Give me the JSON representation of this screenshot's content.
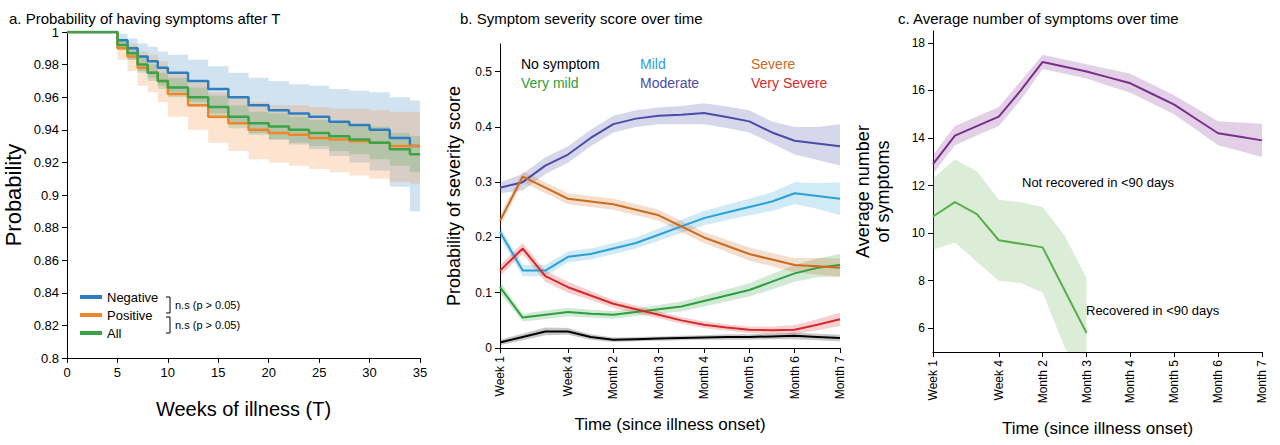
{
  "chart_data": [
    {
      "type": "line",
      "title": "a. Probability of having symptoms after T",
      "x_label": "Weeks of illness (T)",
      "y_label": "Probability",
      "x": [
        0,
        4,
        5,
        6,
        7,
        8,
        9,
        10,
        12,
        14,
        16,
        18,
        20,
        22,
        24,
        26,
        28,
        30,
        32,
        34,
        35
      ],
      "xlim": [
        0,
        35
      ],
      "xticks": [
        0,
        5,
        10,
        15,
        20,
        25,
        30,
        35
      ],
      "ylim": [
        0.8,
        1
      ],
      "yticks": [
        0.8,
        0.82,
        0.84,
        0.86,
        0.88,
        0.9,
        0.92,
        0.94,
        0.96,
        0.98,
        1
      ],
      "line_style": "step",
      "legend": "lower left",
      "grid": false,
      "annotations": [
        "n.s (p > 0.05)",
        "n.s (p > 0.05)"
      ],
      "series": [
        {
          "name": "Negative",
          "color": "#2e7ebf",
          "values": [
            1,
            1,
            0.995,
            0.99,
            0.985,
            0.982,
            0.978,
            0.975,
            0.97,
            0.965,
            0.96,
            0.955,
            0.952,
            0.95,
            0.948,
            0.945,
            0.943,
            0.94,
            0.935,
            0.93,
            0.93
          ],
          "lower": [
            1,
            1,
            0.99,
            0.983,
            0.976,
            0.972,
            0.967,
            0.963,
            0.957,
            0.95,
            0.944,
            0.938,
            0.934,
            0.931,
            0.928,
            0.924,
            0.92,
            0.915,
            0.905,
            0.89,
            0.89
          ],
          "upper": [
            1,
            1,
            0.999,
            0.996,
            0.993,
            0.991,
            0.988,
            0.986,
            0.983,
            0.979,
            0.975,
            0.972,
            0.97,
            0.968,
            0.967,
            0.965,
            0.964,
            0.963,
            0.96,
            0.958,
            0.958
          ]
        },
        {
          "name": "Positive",
          "color": "#f0862c",
          "values": [
            1,
            1,
            0.99,
            0.985,
            0.978,
            0.975,
            0.97,
            0.962,
            0.955,
            0.948,
            0.944,
            0.94,
            0.938,
            0.937,
            0.935,
            0.934,
            0.933,
            0.932,
            0.93,
            0.93,
            0.93
          ],
          "lower": [
            1,
            1,
            0.983,
            0.976,
            0.967,
            0.963,
            0.957,
            0.948,
            0.94,
            0.932,
            0.927,
            0.922,
            0.92,
            0.918,
            0.916,
            0.914,
            0.912,
            0.91,
            0.908,
            0.907,
            0.907
          ],
          "upper": [
            1,
            1,
            0.996,
            0.993,
            0.988,
            0.986,
            0.982,
            0.975,
            0.969,
            0.963,
            0.96,
            0.957,
            0.955,
            0.955,
            0.954,
            0.953,
            0.953,
            0.952,
            0.951,
            0.951,
            0.951
          ]
        },
        {
          "name": "All",
          "color": "#3aa346",
          "values": [
            1,
            1,
            0.992,
            0.987,
            0.98,
            0.975,
            0.97,
            0.966,
            0.96,
            0.954,
            0.948,
            0.944,
            0.942,
            0.94,
            0.938,
            0.936,
            0.934,
            0.932,
            0.928,
            0.925,
            0.925
          ],
          "lower": [
            1,
            1,
            0.989,
            0.983,
            0.975,
            0.97,
            0.965,
            0.96,
            0.954,
            0.947,
            0.941,
            0.937,
            0.934,
            0.932,
            0.93,
            0.927,
            0.925,
            0.922,
            0.918,
            0.914,
            0.914
          ],
          "upper": [
            1,
            1,
            0.995,
            0.991,
            0.985,
            0.98,
            0.975,
            0.972,
            0.966,
            0.961,
            0.955,
            0.951,
            0.95,
            0.948,
            0.946,
            0.945,
            0.943,
            0.942,
            0.938,
            0.936,
            0.936
          ]
        }
      ]
    },
    {
      "type": "line",
      "title": "b. Symptom severity score over time",
      "x_label": "Time (since illness onset)",
      "y_label": "Probability of severity score",
      "categories": [
        "Week 1",
        null,
        null,
        "Week 4",
        null,
        "Month 2",
        null,
        "Month 3",
        null,
        "Month 4",
        null,
        "Month 5",
        null,
        "Month 6",
        null,
        "Month 7"
      ],
      "ylim": [
        0,
        0.55
      ],
      "yticks": [
        0,
        0.1,
        0.2,
        0.3,
        0.4,
        0.5
      ],
      "legend": "upper left",
      "grid": false,
      "series": [
        {
          "name": "No symptom",
          "color": "#000000",
          "values": [
            0.01,
            0.02,
            0.03,
            0.03,
            0.02,
            0.015,
            0.016,
            0.017,
            0.018,
            0.019,
            0.02,
            0.02,
            0.021,
            0.022,
            0.02,
            0.018
          ],
          "lower": [
            0.005,
            0.014,
            0.023,
            0.024,
            0.015,
            0.011,
            0.012,
            0.013,
            0.014,
            0.015,
            0.015,
            0.015,
            0.016,
            0.016,
            0.014,
            0.012
          ],
          "upper": [
            0.015,
            0.026,
            0.037,
            0.036,
            0.025,
            0.019,
            0.02,
            0.021,
            0.022,
            0.023,
            0.025,
            0.025,
            0.026,
            0.028,
            0.026,
            0.024
          ]
        },
        {
          "name": "Very mild",
          "color": "#2e9e3e",
          "values": [
            0.11,
            0.055,
            0.06,
            0.065,
            0.062,
            0.06,
            0.065,
            0.07,
            0.075,
            0.085,
            0.095,
            0.105,
            0.12,
            0.135,
            0.145,
            0.15
          ],
          "lower": [
            0.1,
            0.048,
            0.052,
            0.057,
            0.055,
            0.053,
            0.058,
            0.062,
            0.066,
            0.075,
            0.084,
            0.093,
            0.106,
            0.12,
            0.128,
            0.13
          ],
          "upper": [
            0.12,
            0.062,
            0.068,
            0.073,
            0.069,
            0.067,
            0.072,
            0.078,
            0.084,
            0.095,
            0.106,
            0.117,
            0.134,
            0.15,
            0.162,
            0.17
          ]
        },
        {
          "name": "Mild",
          "color": "#2aa0d8",
          "values": [
            0.21,
            0.14,
            0.14,
            0.165,
            0.17,
            0.18,
            0.19,
            0.205,
            0.22,
            0.235,
            0.245,
            0.255,
            0.265,
            0.28,
            0.275,
            0.27
          ],
          "lower": [
            0.2,
            0.13,
            0.13,
            0.155,
            0.16,
            0.17,
            0.18,
            0.194,
            0.208,
            0.222,
            0.231,
            0.24,
            0.248,
            0.26,
            0.252,
            0.24
          ],
          "upper": [
            0.22,
            0.15,
            0.15,
            0.175,
            0.18,
            0.19,
            0.2,
            0.216,
            0.232,
            0.248,
            0.259,
            0.27,
            0.282,
            0.3,
            0.298,
            0.3
          ]
        },
        {
          "name": "Moderate",
          "color": "#4b4ba8",
          "values": [
            0.29,
            0.3,
            0.33,
            0.35,
            0.38,
            0.405,
            0.415,
            0.42,
            0.422,
            0.425,
            0.418,
            0.41,
            0.39,
            0.375,
            0.37,
            0.365
          ],
          "lower": [
            0.28,
            0.285,
            0.315,
            0.335,
            0.365,
            0.39,
            0.4,
            0.405,
            0.405,
            0.405,
            0.398,
            0.39,
            0.37,
            0.35,
            0.34,
            0.33
          ],
          "upper": [
            0.3,
            0.315,
            0.345,
            0.365,
            0.395,
            0.42,
            0.43,
            0.435,
            0.438,
            0.443,
            0.437,
            0.43,
            0.41,
            0.4,
            0.4,
            0.405
          ]
        },
        {
          "name": "Severe",
          "color": "#cc6a1e",
          "values": [
            0.23,
            0.31,
            0.29,
            0.27,
            0.265,
            0.26,
            0.25,
            0.24,
            0.22,
            0.2,
            0.185,
            0.17,
            0.16,
            0.15,
            0.148,
            0.145
          ],
          "lower": [
            0.22,
            0.3,
            0.28,
            0.26,
            0.255,
            0.25,
            0.24,
            0.23,
            0.21,
            0.19,
            0.174,
            0.158,
            0.148,
            0.137,
            0.133,
            0.128
          ],
          "upper": [
            0.24,
            0.32,
            0.3,
            0.28,
            0.275,
            0.27,
            0.26,
            0.25,
            0.23,
            0.21,
            0.196,
            0.182,
            0.172,
            0.163,
            0.163,
            0.162
          ]
        },
        {
          "name": "Very Severe",
          "color": "#d62a2a",
          "values": [
            0.14,
            0.18,
            0.13,
            0.11,
            0.095,
            0.08,
            0.07,
            0.06,
            0.05,
            0.042,
            0.037,
            0.033,
            0.032,
            0.033,
            0.042,
            0.052
          ],
          "lower": [
            0.13,
            0.17,
            0.12,
            0.1,
            0.087,
            0.073,
            0.063,
            0.054,
            0.044,
            0.036,
            0.031,
            0.027,
            0.025,
            0.025,
            0.032,
            0.04
          ],
          "upper": [
            0.15,
            0.19,
            0.14,
            0.12,
            0.103,
            0.087,
            0.077,
            0.066,
            0.056,
            0.048,
            0.043,
            0.039,
            0.039,
            0.041,
            0.052,
            0.064
          ]
        }
      ]
    },
    {
      "type": "line",
      "title": "c. Average number of symptoms over time",
      "x_label": "Time (since illness onset)",
      "y_label": "Average number\nof symptoms",
      "categories": [
        "Week 1",
        null,
        null,
        "Week 4",
        null,
        "Month 2",
        null,
        "Month 3",
        null,
        "Month 4",
        null,
        "Month 5",
        null,
        "Month 6",
        null,
        "Month 7"
      ],
      "ylim": [
        5,
        18.5
      ],
      "yticks": [
        6,
        8,
        10,
        12,
        14,
        16,
        18
      ],
      "grid": false,
      "series": [
        {
          "name": "Not recovered in <90 days",
          "color": "#7b2d8b",
          "values": [
            12.9,
            14.1,
            14.5,
            14.9,
            16.0,
            17.2,
            17.0,
            16.8,
            16.55,
            16.3,
            15.85,
            15.4,
            14.8,
            14.2,
            14.05,
            13.9
          ],
          "lower": [
            12.5,
            13.7,
            14.1,
            14.5,
            15.6,
            16.9,
            16.7,
            16.5,
            16.2,
            15.9,
            15.45,
            15.0,
            14.35,
            13.7,
            13.45,
            13.2
          ],
          "upper": [
            13.3,
            14.5,
            14.9,
            15.3,
            16.4,
            17.5,
            17.3,
            17.1,
            16.9,
            16.7,
            16.25,
            15.8,
            15.25,
            14.7,
            14.65,
            14.6
          ]
        },
        {
          "name": "Recovered in <90 days",
          "color": "#5aae4a",
          "values": [
            10.7,
            11.3,
            10.8,
            9.7,
            9.55,
            9.4,
            7.6,
            5.8,
            null,
            null,
            null,
            null,
            null,
            null,
            null,
            null
          ],
          "lower": [
            9.3,
            9.6,
            8.8,
            8.0,
            7.9,
            7.5,
            5.2,
            3.5,
            null,
            null,
            null,
            null,
            null,
            null,
            null,
            null
          ],
          "upper": [
            12.3,
            13.1,
            12.6,
            11.4,
            11.3,
            11.1,
            9.9,
            8.1,
            null,
            null,
            null,
            null,
            null,
            null,
            null,
            null
          ]
        }
      ]
    }
  ]
}
